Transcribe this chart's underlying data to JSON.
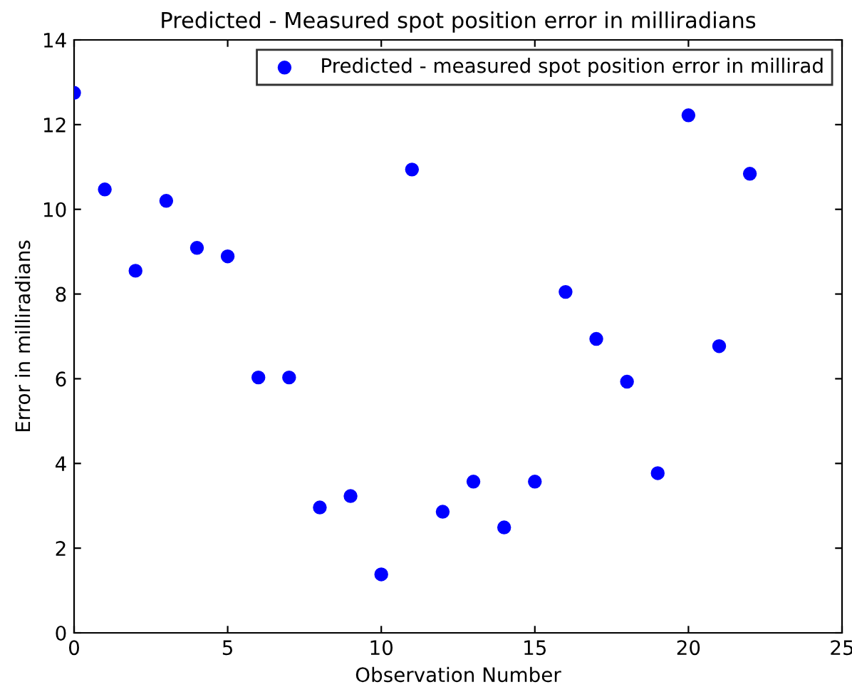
{
  "chart_data": {
    "type": "scatter",
    "title": "Predicted - Measured spot position error in milliradians",
    "xlabel": "Observation Number",
    "ylabel": "Error in milliradians",
    "x": [
      0,
      1,
      2,
      3,
      4,
      5,
      6,
      7,
      8,
      9,
      10,
      11,
      12,
      13,
      14,
      15,
      16,
      17,
      18,
      19,
      20,
      21,
      22
    ],
    "series": [
      {
        "name": "Predicted - measured spot position error in millirad",
        "color": "#0000ff",
        "values": [
          12.75,
          10.47,
          8.55,
          10.2,
          9.09,
          8.89,
          6.03,
          6.03,
          2.96,
          3.23,
          1.38,
          10.94,
          2.86,
          3.57,
          2.49,
          3.57,
          8.05,
          6.94,
          5.93,
          3.77,
          12.22,
          6.77,
          10.84
        ]
      }
    ],
    "xlim": [
      0,
      25
    ],
    "ylim": [
      0,
      14
    ],
    "xticks": [
      0,
      5,
      10,
      15,
      20,
      25
    ],
    "yticks": [
      0,
      2,
      4,
      6,
      8,
      10,
      12,
      14
    ],
    "marker": "circle",
    "grid": false,
    "legend": "top right"
  }
}
